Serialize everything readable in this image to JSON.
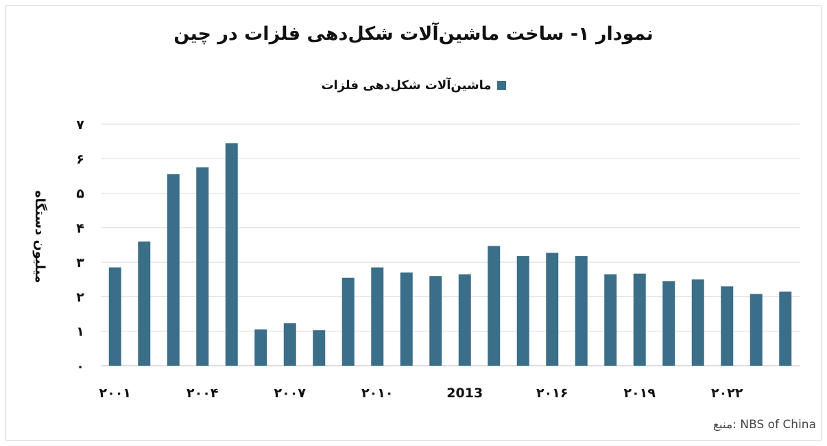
{
  "chart_data": {
    "type": "bar",
    "title": "نمودار ۱- ساخت ماشین‌آلات شکل‌دهی فلزات در چین",
    "ylabel": "میلیون دستگاه",
    "xlabel": "",
    "ylim": [
      0,
      7
    ],
    "yticks": [
      0,
      1,
      2,
      3,
      4,
      5,
      6,
      7
    ],
    "ytick_labels": [
      "۰",
      "۱",
      "۲",
      "۳",
      "۴",
      "۵",
      "۶",
      "۷"
    ],
    "categories": [
      "2001",
      "2002",
      "2003",
      "2004",
      "2005",
      "2006",
      "2007",
      "2008",
      "2009",
      "2010",
      "2011",
      "2012",
      "2013",
      "2014",
      "2015",
      "2016",
      "2017",
      "2018",
      "2019",
      "2020",
      "2021",
      "2022",
      "2023",
      "2024"
    ],
    "xtick_labels": [
      "۲۰۰۱",
      "",
      "",
      "۲۰۰۴",
      "",
      "",
      "۲۰۰۷",
      "",
      "",
      "۲۰۱۰",
      "",
      "",
      "2013",
      "",
      "",
      "۲۰۱۶",
      "",
      "",
      "۲۰۱۹",
      "",
      "",
      "۲۰۲۲",
      "",
      ""
    ],
    "series": [
      {
        "name": "ماشین‌آلات شکل‌دهی فلزات",
        "color": "#3b6e88",
        "values": [
          2.85,
          3.6,
          5.55,
          5.75,
          6.45,
          1.05,
          1.23,
          1.03,
          2.55,
          2.85,
          2.7,
          2.6,
          2.65,
          3.47,
          3.18,
          3.27,
          3.18,
          2.65,
          2.67,
          2.45,
          2.5,
          2.3,
          2.08,
          2.15
        ]
      }
    ],
    "grid": true,
    "legend_position": "top-center"
  },
  "source": {
    "label": "منبع:",
    "value": "NBS of China"
  }
}
